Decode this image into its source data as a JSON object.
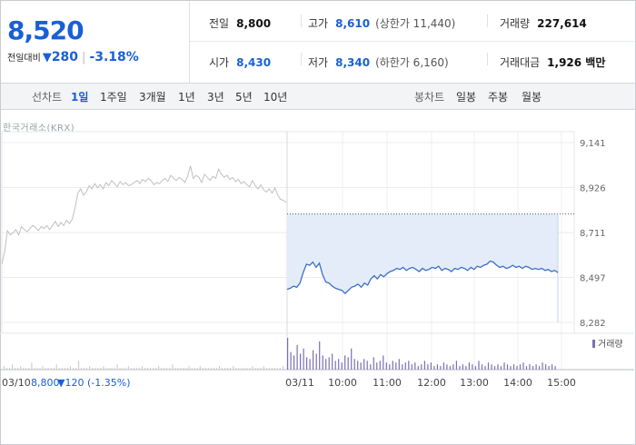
{
  "current": {
    "price": "8,520",
    "change_label": "전일대비",
    "direction_icon": "▼",
    "change": "280",
    "change_pct": "-3.18%"
  },
  "stats": {
    "prev_close": {
      "label": "전일",
      "value": "8,800"
    },
    "open": {
      "label": "시가",
      "value": "8,430"
    },
    "high": {
      "label": "고가",
      "value": "8,610",
      "limit": "(상한가 11,440)"
    },
    "low": {
      "label": "저가",
      "value": "8,340",
      "limit": "(하한가 6,160)"
    },
    "volume": {
      "label": "거래량",
      "value": "227,614"
    },
    "trade_value": {
      "label": "거래대금",
      "value": "1,926 백만"
    }
  },
  "tabs": {
    "line_chart_label": "선차트",
    "line_periods": [
      "1일",
      "1주일",
      "3개월",
      "1년",
      "3년",
      "5년",
      "10년"
    ],
    "active_period": "1일",
    "candle_chart_label": "봉차트",
    "candle_periods": [
      "일봉",
      "주봉",
      "월봉"
    ]
  },
  "exchange_label": "한국거래소(KRX)",
  "colors": {
    "accent": "#1a5fd6",
    "down": "#1a5fd6",
    "prev_day_line": "#c0c0c0",
    "today_line": "#3e6fc8",
    "area_fill": "#e3ecf8",
    "volume_today": "#7b6fb3",
    "volume_prev": "#c8c8c8"
  },
  "chart_data": {
    "type": "line",
    "y_ticks": [
      "9,141",
      "8,926",
      "8,711",
      "8,497",
      "8,282"
    ],
    "ylim": [
      8282,
      9141
    ],
    "x_ticks": [
      "03/10",
      "03/11",
      "10:00",
      "11:00",
      "12:00",
      "13:00",
      "14:00",
      "15:00"
    ],
    "prev_day_info": {
      "date": "03/10",
      "close": "8,800",
      "change": "▼120",
      "pct": "(-1.35%)"
    },
    "reference_line": 8800,
    "volume_legend": "거래량",
    "series": [
      {
        "values": [
          8560,
          8620,
          8720,
          8700,
          8710,
          8725,
          8700,
          8740,
          8725,
          8715,
          8730,
          8745,
          8735,
          8720,
          8740,
          8730,
          8745,
          8725,
          8745,
          8765,
          8740,
          8760,
          8745,
          8770,
          8755,
          8775,
          8830,
          8900,
          8920,
          8890,
          8905,
          8935,
          8920,
          8945,
          8925,
          8940,
          8920,
          8950,
          8935,
          8960,
          8945,
          8930,
          8955,
          8940,
          8950,
          8935,
          8940,
          8950,
          8960,
          8945,
          8965,
          8955,
          8970,
          8960,
          8940,
          8950,
          8945,
          8960,
          8970,
          8955,
          8985,
          8970,
          8960,
          8975,
          8965,
          8950,
          8980,
          9030,
          8970,
          8985,
          8975,
          8950,
          8990,
          8975,
          8960,
          8980,
          8970,
          9015,
          8990,
          8975,
          8985,
          8965,
          8975,
          8955,
          8965,
          8945,
          8955,
          8940,
          8930,
          8960,
          8935,
          8920,
          8940,
          8915,
          8905,
          8920,
          8900,
          8925,
          8890,
          8870,
          8865,
          8855
        ]
      },
      {
        "values": [
          8440,
          8445,
          8455,
          8450,
          8470,
          8520,
          8560,
          8555,
          8570,
          8545,
          8565,
          8510,
          8475,
          8470,
          8455,
          8445,
          8440,
          8435,
          8420,
          8435,
          8450,
          8455,
          8465,
          8450,
          8470,
          8460,
          8490,
          8505,
          8490,
          8510,
          8500,
          8515,
          8525,
          8530,
          8540,
          8535,
          8545,
          8530,
          8540,
          8545,
          8535,
          8525,
          8540,
          8530,
          8535,
          8545,
          8540,
          8550,
          8530,
          8540,
          8535,
          8525,
          8540,
          8535,
          8545,
          8540,
          8530,
          8545,
          8535,
          8550,
          8545,
          8555,
          8560,
          8575,
          8570,
          8555,
          8545,
          8550,
          8540,
          8545,
          8555,
          8545,
          8550,
          8540,
          8550,
          8545,
          8535,
          8540,
          8535,
          8540,
          8530,
          8535,
          8525,
          8530,
          8520
        ]
      }
    ],
    "volume": {
      "prev_day": [
        2,
        1,
        1,
        3,
        1,
        1,
        2,
        1,
        1,
        1,
        4,
        1,
        1,
        1,
        2,
        1,
        1,
        1,
        1,
        3,
        1,
        1,
        1,
        1,
        2,
        1,
        1,
        5,
        1,
        1,
        1,
        2,
        1,
        1,
        1,
        1,
        2,
        1,
        1,
        1,
        1,
        3,
        1,
        1,
        1,
        2,
        1,
        1,
        1,
        1,
        2,
        1,
        1,
        1,
        1,
        1,
        2,
        1,
        1,
        1,
        1,
        3,
        1,
        1,
        1,
        1,
        1,
        2,
        1,
        1,
        1,
        2,
        1,
        1,
        1,
        1,
        1,
        1,
        2,
        1,
        1,
        1,
        1,
        2,
        1,
        1,
        1,
        1,
        1,
        1,
        2,
        1,
        1,
        1,
        2,
        1,
        1,
        1,
        1,
        1,
        1,
        2
      ],
      "today": [
        18,
        10,
        8,
        14,
        9,
        12,
        7,
        6,
        11,
        9,
        16,
        8,
        6,
        7,
        9,
        5,
        6,
        4,
        8,
        7,
        12,
        6,
        5,
        4,
        6,
        5,
        3,
        7,
        4,
        5,
        8,
        4,
        3,
        5,
        4,
        6,
        3,
        4,
        5,
        3,
        4,
        2,
        3,
        5,
        3,
        4,
        2,
        3,
        2,
        4,
        3,
        2,
        3,
        5,
        2,
        3,
        2,
        4,
        3,
        2,
        5,
        3,
        2,
        4,
        3,
        2,
        3,
        2,
        4,
        3,
        2,
        3,
        2,
        3,
        4,
        2,
        3,
        2,
        3,
        2,
        4,
        3,
        2,
        3,
        2
      ]
    }
  }
}
